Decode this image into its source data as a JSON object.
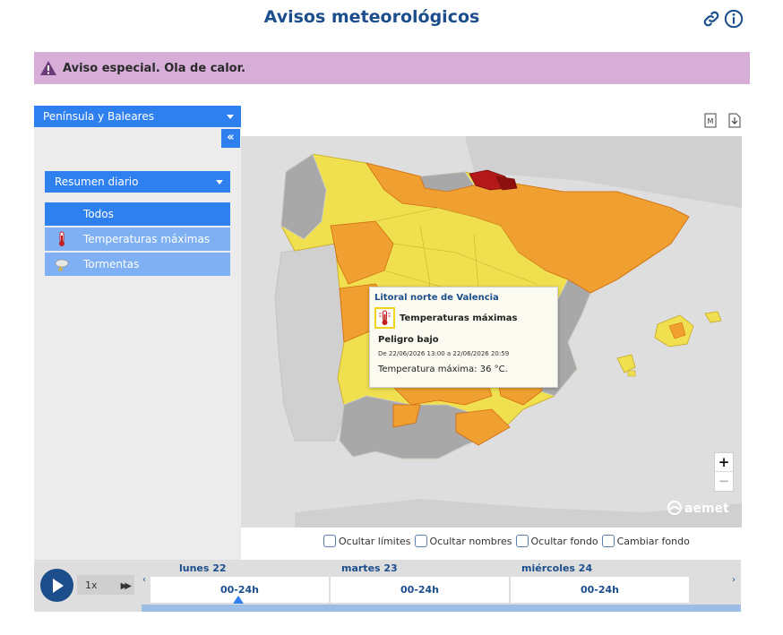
{
  "header": {
    "title": "Avisos meteorológicos"
  },
  "alert": {
    "text": "Aviso especial. Ola de calor."
  },
  "sidebar": {
    "region": "Península y Baleares",
    "collapse_label": "«",
    "summary": "Resumen diario",
    "filters": [
      {
        "label": "Todos",
        "icon": "none",
        "active": true
      },
      {
        "label": "Temperaturas máximas",
        "icon": "thermometer-icon",
        "active": false
      },
      {
        "label": "Tormentas",
        "icon": "storm-cloud-icon",
        "active": false
      }
    ]
  },
  "popup": {
    "zone": "Litoral norte de Valencia",
    "type": "Temperaturas máximas",
    "level": "Peligro bajo",
    "dates": "De 22/06/2026 13:00 a 22/06/2026 20:59",
    "detail": "Temperatura máxima: 36 °C."
  },
  "map": {
    "zoom_in": "+",
    "zoom_out": "−",
    "brand": "aemet",
    "colors": {
      "yellow": "#f0e050",
      "orange": "#f0a030",
      "red": "#b41818",
      "grey": "#a8a8a8",
      "sea": "#dedede"
    }
  },
  "options": [
    {
      "label": "Ocultar límites",
      "checked": false
    },
    {
      "label": "Ocultar nombres",
      "checked": false
    },
    {
      "label": "Ocultar fondo",
      "checked": false
    },
    {
      "label": "Cambiar fondo",
      "checked": false
    }
  ],
  "timeline": {
    "speed": "1x",
    "fast_forward": "▶▶",
    "prev": "‹",
    "next": "›",
    "days": [
      {
        "day": "lunes 22",
        "slot": "00-24h"
      },
      {
        "day": "martes 23",
        "slot": "00-24h"
      },
      {
        "day": "miércoles 24",
        "slot": "00-24h"
      }
    ]
  }
}
